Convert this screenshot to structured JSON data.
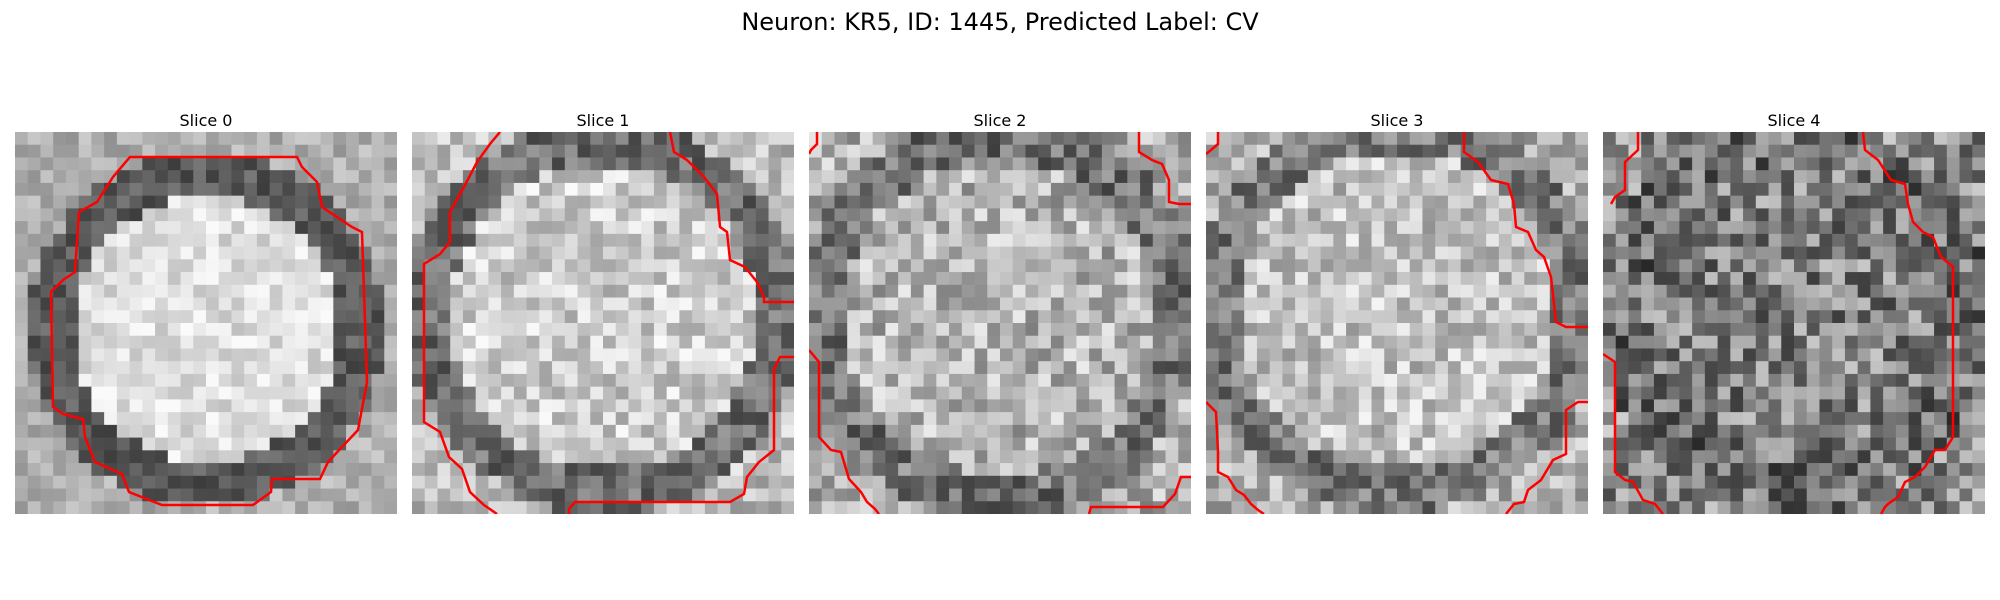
{
  "figure": {
    "title": "Neuron: KR5, ID: 1445, Predicted Label: CV",
    "contour_color": "#ff0000",
    "colormap": "gray"
  },
  "slices": [
    {
      "title": "Slice 0"
    },
    {
      "title": "Slice 1"
    },
    {
      "title": "Slice 2"
    },
    {
      "title": "Slice 3"
    },
    {
      "title": "Slice 4"
    }
  ]
}
